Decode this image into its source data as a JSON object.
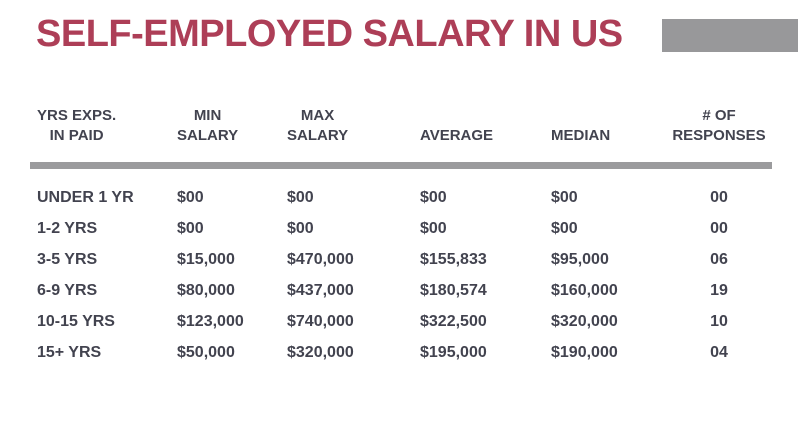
{
  "theme": {
    "background": "#ffffff",
    "accent": "#ad3e57",
    "text": "#42434f",
    "gray_block": "#98989a",
    "divider": "#9b9b9d"
  },
  "title": "SELF-EMPLOYED SALARY IN US",
  "table": {
    "header_lines": [
      [
        "YRS EXPS.",
        "IN PAID"
      ],
      [
        "MIN",
        "SALARY"
      ],
      [
        "MAX",
        "SALARY"
      ],
      [
        "AVERAGE"
      ],
      [
        "MEDIAN"
      ],
      [
        "# OF",
        "RESPONSES"
      ]
    ],
    "header_names": [
      "yrs-exps-in-paid",
      "min-salary",
      "max-salary",
      "average",
      "median",
      "num-responses"
    ]
  },
  "chart_data": {
    "type": "table",
    "title": "SELF-EMPLOYED SALARY IN US",
    "columns": [
      "YRS EXPS. IN PAID",
      "MIN SALARY",
      "MAX SALARY",
      "AVERAGE",
      "MEDIAN",
      "# OF RESPONSES"
    ],
    "rows": [
      [
        "UNDER 1 YR",
        "$00",
        "$00",
        "$00",
        "$00",
        "00"
      ],
      [
        "1-2 YRS",
        "$00",
        "$00",
        "$00",
        "$00",
        "00"
      ],
      [
        "3-5 YRS",
        "$15,000",
        "$470,000",
        "$155,833",
        "$95,000",
        "06"
      ],
      [
        "6-9 YRS",
        "$80,000",
        "$437,000",
        "$180,574",
        "$160,000",
        "19"
      ],
      [
        "10-15 YRS",
        "$123,000",
        "$740,000",
        "$322,500",
        "$320,000",
        "10"
      ],
      [
        "15+ YRS",
        "$50,000",
        "$320,000",
        "$195,000",
        "$190,000",
        "04"
      ]
    ]
  }
}
